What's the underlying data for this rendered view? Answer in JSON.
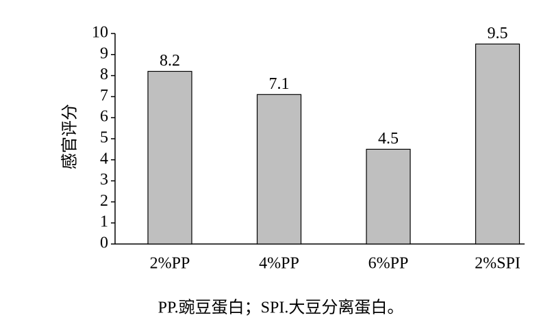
{
  "chart_data": {
    "type": "bar",
    "ylabel": "感官评分",
    "categories": [
      "2%PP",
      "4%PP",
      "6%PP",
      "2%SPI"
    ],
    "values": [
      8.2,
      7.1,
      4.5,
      9.5
    ],
    "color": "#bfbfbf",
    "ylim": [
      0,
      10
    ],
    "yticks": [
      0,
      1,
      2,
      3,
      4,
      5,
      6,
      7,
      8,
      9,
      10
    ],
    "note": "PP.豌豆蛋白；SPI.大豆分离蛋白。"
  }
}
